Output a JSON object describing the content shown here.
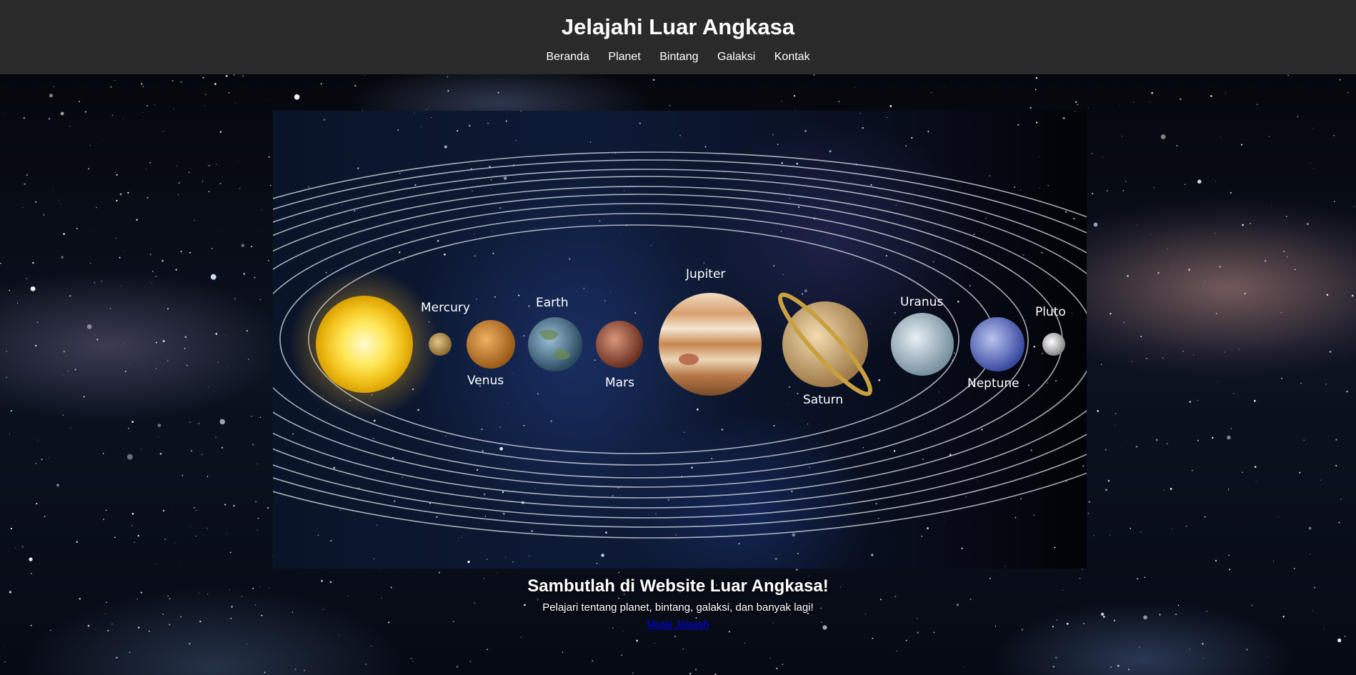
{
  "header": {
    "title": "Jelajahi Luar Angkasa",
    "nav": [
      "Beranda",
      "Planet",
      "Bintang",
      "Galaksi",
      "Kontak"
    ]
  },
  "hero": {
    "planet_labels": {
      "mercury": "Mercury",
      "venus": "Venus",
      "earth": "Earth",
      "mars": "Mars",
      "jupiter": "Jupiter",
      "saturn": "Saturn",
      "uranus": "Uranus",
      "neptune": "Neptune",
      "pluto": "Pluto"
    }
  },
  "welcome": {
    "title": "Sambutlah di Website Luar Angkasa!",
    "description": "Pelajari tentang planet, bintang, galaksi, dan banyak lagi!",
    "link": "Mulai Jelajah"
  },
  "colors": {
    "header_bg": "#2a2a2a",
    "header_text": "#ffffff",
    "link": "#0000ee"
  }
}
